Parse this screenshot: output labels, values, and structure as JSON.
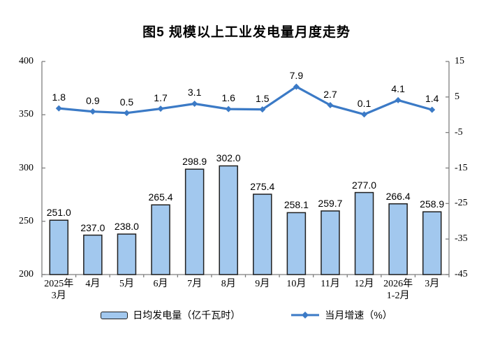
{
  "title": "图5 规模以上工业发电量月度走势",
  "legend": {
    "bar_label": "日均发电量（亿千瓦时）",
    "line_label": "当月增速（%）"
  },
  "colors": {
    "background": "#FFFFFF",
    "text": "#000000",
    "axis": "#7F7F7F",
    "bar_fill": "#A2C8EE",
    "bar_border": "#1F1F1F",
    "line": "#3B7AC6"
  },
  "chart_data": {
    "type": "bar",
    "combo": "bar+line",
    "title": "图5 规模以上工业发电量月度走势",
    "grid": false,
    "legend_position": "bottom",
    "data_labels": true,
    "categories": [
      [
        "2025年",
        "3月"
      ],
      [
        "4月"
      ],
      [
        "5月"
      ],
      [
        "6月"
      ],
      [
        "7月"
      ],
      [
        "8月"
      ],
      [
        "9月"
      ],
      [
        "10月"
      ],
      [
        "11月"
      ],
      [
        "12月"
      ],
      [
        "2026年",
        "1-2月"
      ],
      [
        "3月"
      ]
    ],
    "series": [
      {
        "name": "日均发电量（亿千瓦时）",
        "type": "bar",
        "axis": "left",
        "values": [
          251.0,
          237.0,
          238.0,
          265.4,
          298.9,
          302.0,
          275.4,
          258.1,
          259.7,
          277.0,
          266.4,
          258.9
        ]
      },
      {
        "name": "当月增速（%）",
        "type": "line",
        "axis": "right",
        "values": [
          1.8,
          0.9,
          0.5,
          1.7,
          3.1,
          1.6,
          1.5,
          7.9,
          2.7,
          0.1,
          4.1,
          1.4
        ]
      }
    ],
    "left_axis": {
      "min": 200,
      "max": 400,
      "ticks": [
        400,
        350,
        300,
        250,
        200
      ]
    },
    "right_axis": {
      "min": -45,
      "max": 15,
      "ticks": [
        15,
        5,
        -5,
        -15,
        -25,
        -35,
        -45
      ]
    }
  }
}
